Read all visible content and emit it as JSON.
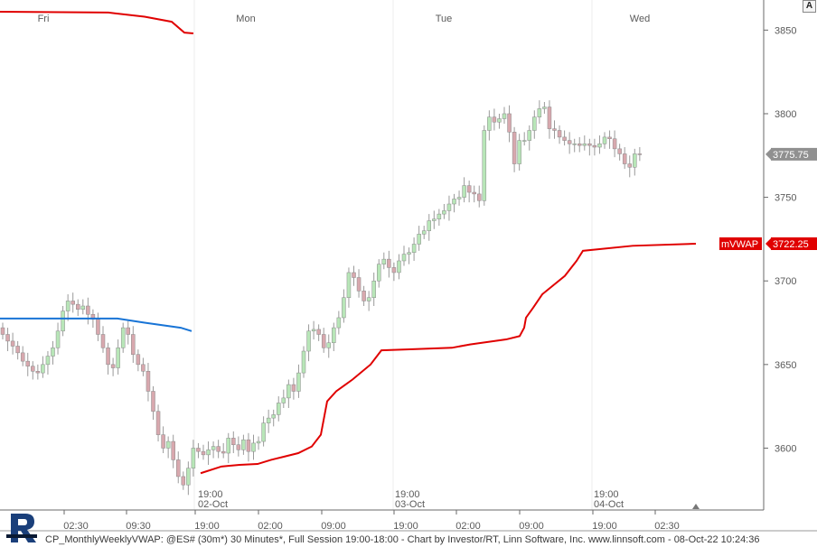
{
  "chart_data": {
    "type": "candlestick",
    "symbol_line": "CP_MonthlyWeeklyVWAP: @ES# (30m*) 30 Minutes*, Full Session 19:00-18:00 - Chart by Investor/RT, Linn Software, Inc. www.linnsoft.com - 08-Oct-22 10:24:36",
    "y_ticks": [
      3600,
      3650,
      3700,
      3750,
      3800,
      3850
    ],
    "y_tick_labels": [
      "3600",
      "3650",
      "3700",
      "3750",
      "3800",
      "3850"
    ],
    "ylim": [
      3563,
      3868
    ],
    "day_labels": [
      "Fri",
      "Mon",
      "Tue",
      "Wed"
    ],
    "x_tick_labels": [
      "02:30",
      "09:30",
      "19:00",
      "02:00",
      "09:00",
      "19:00",
      "02:00",
      "09:00",
      "19:00",
      "02:30"
    ],
    "session_dates": [
      {
        "time": "19:00",
        "date": "02-Oct"
      },
      {
        "time": "19:00",
        "date": "03-Oct"
      },
      {
        "time": "19:00",
        "date": "04-Oct"
      }
    ],
    "last_price_label": "3775.75",
    "last_price": 3775.75,
    "vwap_label": "mVWAP",
    "vwap_value_label": "3722.25",
    "vwap_value": 3722.25,
    "colors": {
      "up": "#b8e6b8",
      "down": "#d8a8ae",
      "monthly_vwap": "#e00000",
      "weekly_vwap": "#1874d6",
      "price_marker": "#909090",
      "vwap_marker": "#e00000"
    },
    "candle_closes": [
      3668,
      3664,
      3661,
      3657,
      3652,
      3649,
      3646,
      3645,
      3650,
      3655,
      3660,
      3670,
      3682,
      3688,
      3686,
      3683,
      3685,
      3680,
      3677,
      3668,
      3660,
      3650,
      3648,
      3660,
      3672,
      3668,
      3656,
      3650,
      3646,
      3634,
      3622,
      3608,
      3600,
      3604,
      3593,
      3583,
      3578,
      3588,
      3600,
      3598,
      3596,
      3599,
      3601,
      3598,
      3597,
      3606,
      3602,
      3599,
      3605,
      3598,
      3603,
      3604,
      3615,
      3618,
      3620,
      3627,
      3630,
      3638,
      3634,
      3645,
      3658,
      3670,
      3671,
      3668,
      3660,
      3663,
      3672,
      3678,
      3690,
      3705,
      3702,
      3694,
      3688,
      3690,
      3700,
      3710,
      3713,
      3708,
      3705,
      3712,
      3716,
      3717,
      3722,
      3728,
      3730,
      3736,
      3737,
      3740,
      3742,
      3746,
      3749,
      3750,
      3757,
      3753,
      3752,
      3748,
      3790,
      3798,
      3795,
      3797,
      3800,
      3789,
      3770,
      3784,
      3784,
      3790,
      3798,
      3803,
      3804,
      3791,
      3790,
      3786,
      3784,
      3782,
      3782,
      3781,
      3782,
      3781,
      3780,
      3782,
      3786,
      3785,
      3779,
      3776,
      3770,
      3768,
      3776,
      3775.75
    ],
    "weekly_vwap_points": [
      [
        0,
        3677.5
      ],
      [
        50,
        3677.5
      ],
      [
        130,
        3677.5
      ],
      [
        160,
        3675
      ],
      [
        200,
        3672
      ],
      [
        212,
        3670
      ]
    ],
    "monthly_vwap_friday": [
      [
        0,
        3861
      ],
      [
        120,
        3860.5
      ],
      [
        160,
        3858
      ],
      [
        190,
        3855
      ],
      [
        204,
        3848.5
      ],
      [
        214,
        3848
      ]
    ],
    "monthly_vwap_points": [
      [
        222,
        3585
      ],
      [
        245,
        3589
      ],
      [
        265,
        3590
      ],
      [
        285,
        3590.5
      ],
      [
        300,
        3593
      ],
      [
        315,
        3595
      ],
      [
        330,
        3597
      ],
      [
        345,
        3601
      ],
      [
        355,
        3608
      ],
      [
        362,
        3628
      ],
      [
        372,
        3634
      ],
      [
        390,
        3641
      ],
      [
        410,
        3650
      ],
      [
        422,
        3658.5
      ],
      [
        450,
        3659
      ],
      [
        500,
        3660
      ],
      [
        520,
        3662
      ],
      [
        560,
        3665
      ],
      [
        575,
        3667
      ],
      [
        580,
        3672
      ],
      [
        582,
        3678
      ],
      [
        590,
        3684
      ],
      [
        600,
        3692
      ],
      [
        625,
        3703
      ],
      [
        638,
        3712
      ],
      [
        645,
        3718
      ],
      [
        700,
        3721
      ],
      [
        770,
        3722.25
      ]
    ]
  }
}
